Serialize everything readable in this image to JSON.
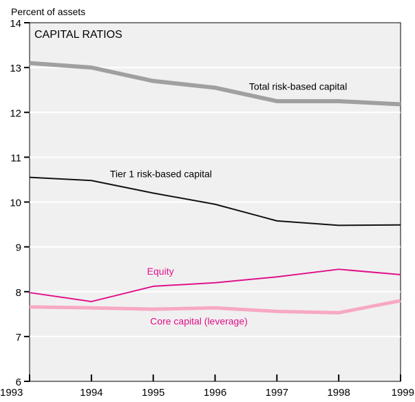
{
  "chart_data": {
    "type": "line",
    "title": "CAPITAL RATIOS",
    "ylabel": "Percent of assets",
    "xlabel": "",
    "x": [
      1993,
      1994,
      1995,
      1996,
      1997,
      1998,
      1999
    ],
    "xlim": [
      1993,
      1999
    ],
    "ylim": [
      6,
      14
    ],
    "yticks": [
      6,
      7,
      8,
      9,
      10,
      11,
      12,
      13,
      14
    ],
    "grid": true,
    "background": "#f0f0f0",
    "series": [
      {
        "name": "Total risk-based capital",
        "values": [
          13.1,
          13.0,
          12.7,
          12.55,
          12.25,
          12.25,
          12.18
        ],
        "color": "#a0a0a0",
        "label_anchor": [
          1996.55,
          12.5
        ]
      },
      {
        "name": "Tier 1 risk-based capital",
        "values": [
          10.55,
          10.48,
          10.2,
          9.95,
          9.58,
          9.48,
          9.49
        ],
        "color": "#111111",
        "label_anchor": [
          1994.3,
          10.55
        ]
      },
      {
        "name": "Equity",
        "values": [
          7.98,
          7.78,
          8.12,
          8.2,
          8.33,
          8.5,
          8.38
        ],
        "color": "#e0118a",
        "label_anchor": [
          1994.9,
          8.38
        ]
      },
      {
        "name": "Core capital (leverage)",
        "values": [
          7.66,
          7.64,
          7.61,
          7.64,
          7.56,
          7.53,
          7.8
        ],
        "color": "#f7a8c4",
        "label_anchor": [
          1994.95,
          7.27
        ]
      }
    ]
  }
}
